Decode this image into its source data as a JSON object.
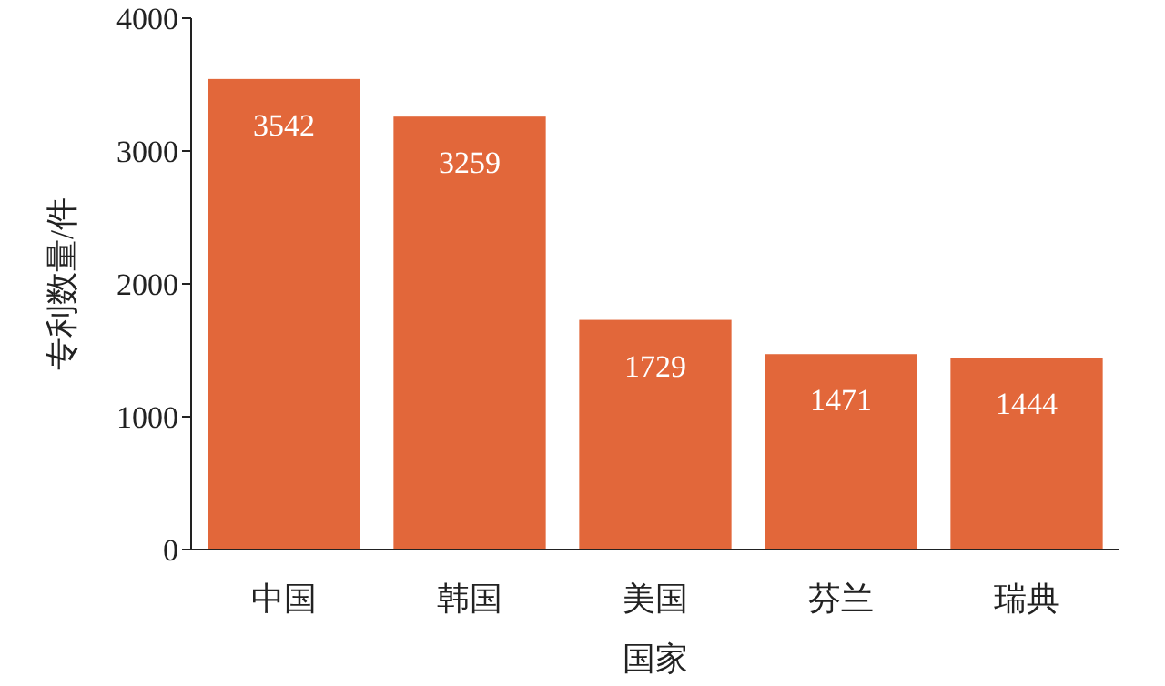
{
  "chart_data": {
    "type": "bar",
    "xlabel": "国家",
    "ylabel": "专利数量/件",
    "categories": [
      "中国",
      "韩国",
      "美国",
      "芬兰",
      "瑞典"
    ],
    "values": [
      3542,
      3259,
      1729,
      1471,
      1444
    ],
    "color": "#e2673a",
    "ylim": [
      0,
      4000
    ],
    "yticks": [
      0,
      1000,
      2000,
      3000,
      4000
    ],
    "data_labels": true
  }
}
